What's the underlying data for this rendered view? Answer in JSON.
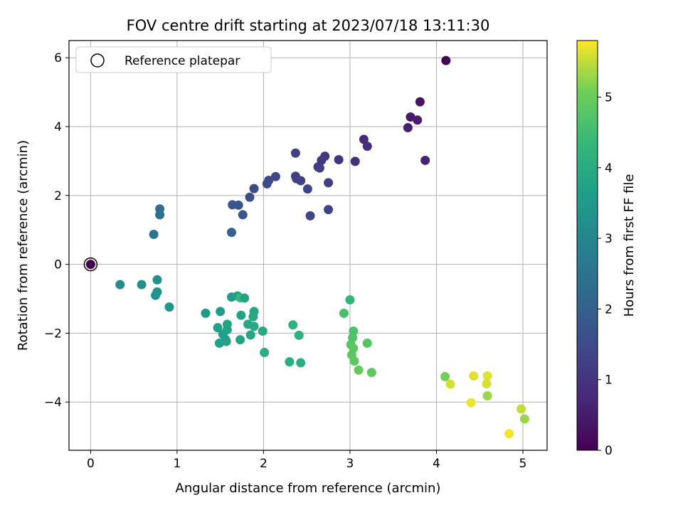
{
  "chart_data": {
    "type": "scatter",
    "title": "FOV centre drift starting at 2023/07/18 13:11:30",
    "xlabel": "Angular distance from reference (arcmin)",
    "ylabel": "Rotation from reference (arcmin)",
    "xlim": [
      -0.25,
      5.28
    ],
    "ylim": [
      -5.4,
      6.5
    ],
    "xticks": [
      0,
      1,
      2,
      3,
      4,
      5
    ],
    "yticks": [
      -4,
      -2,
      0,
      2,
      4,
      6
    ],
    "grid": true,
    "legend": {
      "position": "top-left",
      "entries": [
        "Reference platepar"
      ]
    },
    "reference_point": {
      "x": 0,
      "y": 0
    },
    "colorbar": {
      "label": "Hours from first FF file",
      "min": 0,
      "max": 5.8,
      "ticks": [
        0,
        1,
        2,
        3,
        4,
        5
      ],
      "colormap": "viridis"
    },
    "points": [
      {
        "x": 4.11,
        "y": 5.92,
        "h": 0.05
      },
      {
        "x": 3.81,
        "y": 4.72,
        "h": 0.35
      },
      {
        "x": 3.7,
        "y": 4.28,
        "h": 0.45
      },
      {
        "x": 3.78,
        "y": 4.19,
        "h": 0.5
      },
      {
        "x": 3.67,
        "y": 3.97,
        "h": 0.55
      },
      {
        "x": 3.87,
        "y": 3.02,
        "h": 0.65
      },
      {
        "x": 3.16,
        "y": 3.63,
        "h": 0.8
      },
      {
        "x": 3.2,
        "y": 3.43,
        "h": 0.85
      },
      {
        "x": 3.06,
        "y": 2.99,
        "h": 0.95
      },
      {
        "x": 2.87,
        "y": 3.04,
        "h": 1.0
      },
      {
        "x": 2.71,
        "y": 3.14,
        "h": 1.05
      },
      {
        "x": 2.67,
        "y": 3.02,
        "h": 1.1
      },
      {
        "x": 2.37,
        "y": 3.23,
        "h": 1.2
      },
      {
        "x": 2.63,
        "y": 2.83,
        "h": 1.15
      },
      {
        "x": 2.65,
        "y": 2.8,
        "h": 1.2
      },
      {
        "x": 2.37,
        "y": 2.56,
        "h": 1.25
      },
      {
        "x": 2.38,
        "y": 2.49,
        "h": 1.3
      },
      {
        "x": 2.43,
        "y": 2.43,
        "h": 1.3
      },
      {
        "x": 2.75,
        "y": 2.37,
        "h": 1.25
      },
      {
        "x": 2.51,
        "y": 2.19,
        "h": 1.35
      },
      {
        "x": 2.14,
        "y": 2.55,
        "h": 1.4
      },
      {
        "x": 2.06,
        "y": 2.44,
        "h": 1.45
      },
      {
        "x": 2.04,
        "y": 2.34,
        "h": 1.5
      },
      {
        "x": 1.89,
        "y": 2.2,
        "h": 1.55
      },
      {
        "x": 1.84,
        "y": 1.95,
        "h": 1.6
      },
      {
        "x": 2.54,
        "y": 1.41,
        "h": 1.4
      },
      {
        "x": 2.75,
        "y": 1.59,
        "h": 1.35
      },
      {
        "x": 1.64,
        "y": 1.73,
        "h": 1.7
      },
      {
        "x": 1.71,
        "y": 1.72,
        "h": 1.75
      },
      {
        "x": 1.76,
        "y": 1.44,
        "h": 1.8
      },
      {
        "x": 1.63,
        "y": 0.93,
        "h": 2.0
      },
      {
        "x": 0.8,
        "y": 1.61,
        "h": 2.3
      },
      {
        "x": 0.8,
        "y": 1.44,
        "h": 2.35
      },
      {
        "x": 0.73,
        "y": 0.87,
        "h": 2.5
      },
      {
        "x": 0.34,
        "y": -0.59,
        "h": 3.2
      },
      {
        "x": 0.59,
        "y": -0.59,
        "h": 3.25
      },
      {
        "x": 0.77,
        "y": -0.45,
        "h": 3.3
      },
      {
        "x": 0.77,
        "y": -0.8,
        "h": 3.35
      },
      {
        "x": 0.75,
        "y": -0.9,
        "h": 3.4
      },
      {
        "x": 0.91,
        "y": -1.24,
        "h": 3.45
      },
      {
        "x": 1.33,
        "y": -1.42,
        "h": 3.55
      },
      {
        "x": 1.5,
        "y": -1.37,
        "h": 3.6
      },
      {
        "x": 1.63,
        "y": -0.95,
        "h": 3.6
      },
      {
        "x": 1.7,
        "y": -0.92,
        "h": 3.7
      },
      {
        "x": 1.73,
        "y": -0.97,
        "h": 4.35
      },
      {
        "x": 1.78,
        "y": -0.98,
        "h": 3.8
      },
      {
        "x": 1.89,
        "y": -1.37,
        "h": 3.85
      },
      {
        "x": 1.88,
        "y": -1.52,
        "h": 3.9
      },
      {
        "x": 1.74,
        "y": -1.48,
        "h": 3.75
      },
      {
        "x": 1.58,
        "y": -1.74,
        "h": 3.8
      },
      {
        "x": 1.82,
        "y": -1.74,
        "h": 3.9
      },
      {
        "x": 1.89,
        "y": -1.8,
        "h": 3.95
      },
      {
        "x": 1.47,
        "y": -1.84,
        "h": 3.7
      },
      {
        "x": 1.58,
        "y": -1.9,
        "h": 3.75
      },
      {
        "x": 1.53,
        "y": -2.03,
        "h": 3.7
      },
      {
        "x": 1.56,
        "y": -2.18,
        "h": 3.65
      },
      {
        "x": 1.49,
        "y": -2.29,
        "h": 3.7
      },
      {
        "x": 1.57,
        "y": -2.24,
        "h": 3.75
      },
      {
        "x": 1.73,
        "y": -2.19,
        "h": 3.8
      },
      {
        "x": 1.85,
        "y": -2.05,
        "h": 3.85
      },
      {
        "x": 1.99,
        "y": -1.94,
        "h": 3.9
      },
      {
        "x": 2.01,
        "y": -2.56,
        "h": 4.05
      },
      {
        "x": 2.34,
        "y": -1.76,
        "h": 4.2
      },
      {
        "x": 2.41,
        "y": -2.06,
        "h": 4.15
      },
      {
        "x": 2.3,
        "y": -2.83,
        "h": 4.1
      },
      {
        "x": 2.43,
        "y": -2.86,
        "h": 4.1
      },
      {
        "x": 3.0,
        "y": -1.03,
        "h": 4.3
      },
      {
        "x": 2.93,
        "y": -1.42,
        "h": 4.6
      },
      {
        "x": 3.04,
        "y": -1.94,
        "h": 4.65
      },
      {
        "x": 3.03,
        "y": -2.13,
        "h": 4.7
      },
      {
        "x": 3.01,
        "y": -2.33,
        "h": 4.8
      },
      {
        "x": 3.04,
        "y": -2.44,
        "h": 4.85
      },
      {
        "x": 3.2,
        "y": -2.29,
        "h": 4.75
      },
      {
        "x": 3.02,
        "y": -2.63,
        "h": 4.85
      },
      {
        "x": 3.05,
        "y": -2.81,
        "h": 4.9
      },
      {
        "x": 3.1,
        "y": -3.07,
        "h": 4.95
      },
      {
        "x": 3.25,
        "y": -3.14,
        "h": 4.9
      },
      {
        "x": 4.1,
        "y": -3.26,
        "h": 5.1
      },
      {
        "x": 4.16,
        "y": -3.48,
        "h": 5.6
      },
      {
        "x": 4.43,
        "y": -3.24,
        "h": 5.65
      },
      {
        "x": 4.59,
        "y": -3.24,
        "h": 5.65
      },
      {
        "x": 4.58,
        "y": -3.47,
        "h": 5.6
      },
      {
        "x": 4.59,
        "y": -3.82,
        "h": 5.3
      },
      {
        "x": 4.4,
        "y": -4.02,
        "h": 5.7
      },
      {
        "x": 4.98,
        "y": -4.2,
        "h": 5.5
      },
      {
        "x": 5.02,
        "y": -4.49,
        "h": 5.3
      },
      {
        "x": 4.84,
        "y": -4.92,
        "h": 5.75
      },
      {
        "x": 0.0,
        "y": 0.0,
        "h": 0.0
      }
    ]
  }
}
